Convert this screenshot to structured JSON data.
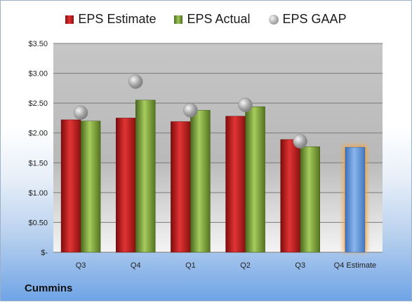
{
  "chart_data": {
    "type": "bar",
    "categories": [
      "Q3",
      "Q4",
      "Q1",
      "Q2",
      "Q3",
      "Q4 Estimate"
    ],
    "series": [
      {
        "name": "EPS Estimate",
        "values": [
          2.22,
          2.25,
          2.19,
          2.28,
          1.89,
          null
        ]
      },
      {
        "name": "EPS Actual",
        "values": [
          2.2,
          2.55,
          2.38,
          2.44,
          1.77,
          null
        ]
      },
      {
        "name": "EPS GAAP",
        "values": [
          2.34,
          2.86,
          2.38,
          2.47,
          1.86,
          null
        ]
      }
    ],
    "forecast": {
      "category": "Q4 Estimate",
      "value": 1.76
    },
    "ylim": [
      0,
      3.5
    ],
    "yticks": [
      3.5,
      3.0,
      2.5,
      2.0,
      1.5,
      1.0,
      0.5,
      0
    ],
    "ytick_labels": [
      "$3.50",
      "$3.00",
      "$2.50",
      "$2.00",
      "$1.50",
      "$1.00",
      "$0.50",
      "$-"
    ],
    "legend_position": "top-center",
    "grid": true,
    "colors": {
      "estimate": "#c01f1f",
      "actual": "#7da03a",
      "gaap": "#a5a5a5",
      "forecast": "#5b8fd6",
      "forecast_glow": "#f0a848"
    }
  },
  "legend": {
    "estimate": "EPS Estimate",
    "actual": "EPS Actual",
    "gaap": "EPS GAAP"
  },
  "footer": {
    "company": "Cummins"
  }
}
